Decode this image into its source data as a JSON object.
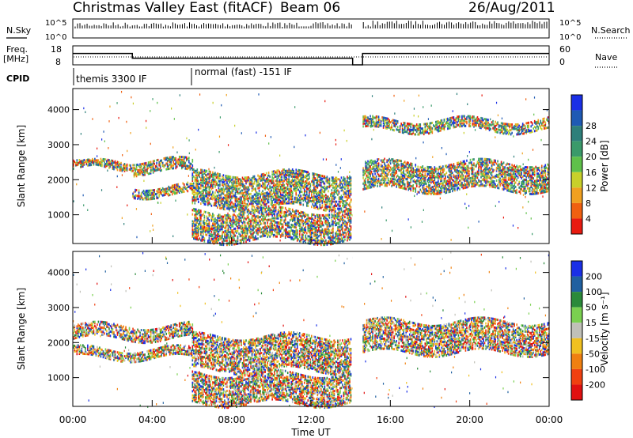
{
  "header": {
    "title": "Christmas Valley East (fitACF)",
    "beam": "Beam 06",
    "date": "26/Aug/2011"
  },
  "status": {
    "nsky_label": "N.Sky",
    "nsearch_label": "N.Search",
    "freq_label_1": "Freq.",
    "freq_label_2": "[MHz]",
    "nave_label": "Nave",
    "cpid_label": "CPID",
    "sky_ticks": [
      "10^5",
      "10^0"
    ],
    "sky_right_ticks": [
      "10^5",
      "10^0"
    ],
    "freq_ticks": [
      18,
      8
    ],
    "nave_ticks": [
      60,
      0
    ],
    "cpid_segments": [
      {
        "label": "themis 3300 IF",
        "start_hour": 0
      },
      {
        "label": "normal (fast) -151 IF",
        "start_hour": 6
      }
    ],
    "freq_trace": [
      [
        0,
        14
      ],
      [
        3,
        14
      ],
      [
        3,
        11.5
      ],
      [
        6,
        11.5
      ],
      [
        14.1,
        11.5
      ],
      [
        14.1,
        8
      ],
      [
        14.6,
        8
      ],
      [
        14.6,
        14
      ],
      [
        24,
        14
      ]
    ],
    "nave_dotted_level": 25
  },
  "colors": {
    "power_scale": [
      "#1a2fe6",
      "#1f5ab4",
      "#2e7f7a",
      "#3a9a6a",
      "#5fc04a",
      "#c8d02a",
      "#f0a020",
      "#f06010",
      "#e81a10"
    ],
    "velocity_scale": [
      "#1a2fe6",
      "#2060a0",
      "#2a8a3a",
      "#7ad050",
      "#c0c0b8",
      "#f0c020",
      "#f08010",
      "#f04010",
      "#e01010"
    ]
  },
  "chart_data": [
    {
      "type": "heatmap",
      "name": "power-panel",
      "xlabel": "Time UT",
      "ylabel": "Slant Range [km]",
      "xlim": [
        0,
        24
      ],
      "ylim": [
        180,
        4600
      ],
      "x_ticks": [
        "00:00",
        "04:00",
        "08:00",
        "12:00",
        "16:00",
        "20:00",
        "00:00"
      ],
      "y_ticks": [
        1000,
        2000,
        3000,
        4000
      ],
      "colorbar_label": "Power [dB]",
      "colorbar_ticks": [
        4,
        8,
        12,
        16,
        20,
        24,
        28
      ],
      "bands": [
        {
          "start": 0,
          "end": 3,
          "ranges": [
            [
              2300,
              2500
            ],
            [
              2350,
              2450
            ]
          ]
        },
        {
          "start": 3,
          "end": 6,
          "ranges": [
            [
              1550,
              1800
            ],
            [
              2200,
              2550
            ]
          ]
        },
        {
          "start": 6,
          "end": 14,
          "ranges": [
            [
              1200,
              2200
            ],
            [
              250,
              1100
            ]
          ]
        },
        {
          "start": 14.6,
          "end": 24,
          "ranges": [
            [
              1700,
              2500
            ],
            [
              3400,
              3700
            ]
          ]
        }
      ]
    },
    {
      "type": "heatmap",
      "name": "velocity-panel",
      "xlabel": "Time UT",
      "ylabel": "Slant Range [km]",
      "xlim": [
        0,
        24
      ],
      "ylim": [
        180,
        4600
      ],
      "x_ticks": [
        "00:00",
        "04:00",
        "08:00",
        "12:00",
        "16:00",
        "20:00",
        "00:00"
      ],
      "y_ticks": [
        1000,
        2000,
        3000,
        4000
      ],
      "colorbar_label": "Velocity [m s⁻¹]",
      "colorbar_ticks": [
        200,
        100,
        50,
        15,
        -15,
        -50,
        -100,
        -200
      ],
      "bands": [
        {
          "start": 0,
          "end": 6,
          "ranges": [
            [
              2100,
              2500
            ],
            [
              1550,
              1800
            ]
          ]
        },
        {
          "start": 6,
          "end": 14,
          "ranges": [
            [
              1200,
              2200
            ],
            [
              250,
              1100
            ]
          ]
        },
        {
          "start": 14.6,
          "end": 24,
          "ranges": [
            [
              1700,
              2600
            ]
          ]
        }
      ]
    }
  ]
}
